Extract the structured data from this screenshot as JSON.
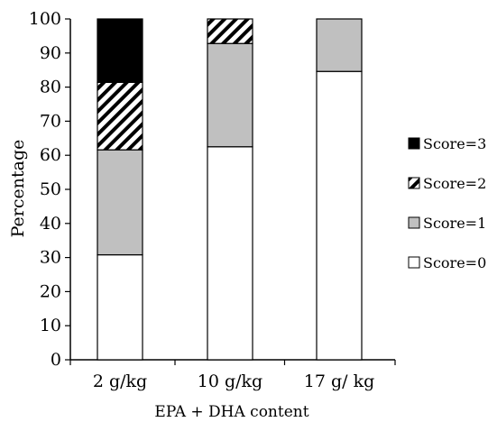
{
  "chart_data": {
    "type": "bar",
    "stacked": true,
    "categories": [
      "2 g/kg",
      "10 g/kg",
      "17 g/ kg"
    ],
    "series": [
      {
        "name": "Score=0",
        "values": [
          30.8,
          62.5,
          84.6
        ],
        "fill": "#ffffff",
        "pattern": "solid"
      },
      {
        "name": "Score=1",
        "values": [
          30.8,
          30.3,
          15.4
        ],
        "fill": "#c0c0c0",
        "pattern": "solid"
      },
      {
        "name": "Score=2",
        "values": [
          19.8,
          7.2,
          0
        ],
        "fill": "#ffffff",
        "pattern": "hatch"
      },
      {
        "name": "Score=3",
        "values": [
          18.6,
          0,
          0
        ],
        "fill": "#000000",
        "pattern": "solid"
      }
    ],
    "legend_order": [
      "Score=3",
      "Score=2",
      "Score=1",
      "Score=0"
    ],
    "xlabel": "EPA + DHA content",
    "ylabel": "Percentage",
    "ylim": [
      0,
      100
    ],
    "yticks": [
      0,
      10,
      20,
      30,
      40,
      50,
      60,
      70,
      80,
      90,
      100
    ],
    "grid": false,
    "legend_position": "right"
  }
}
